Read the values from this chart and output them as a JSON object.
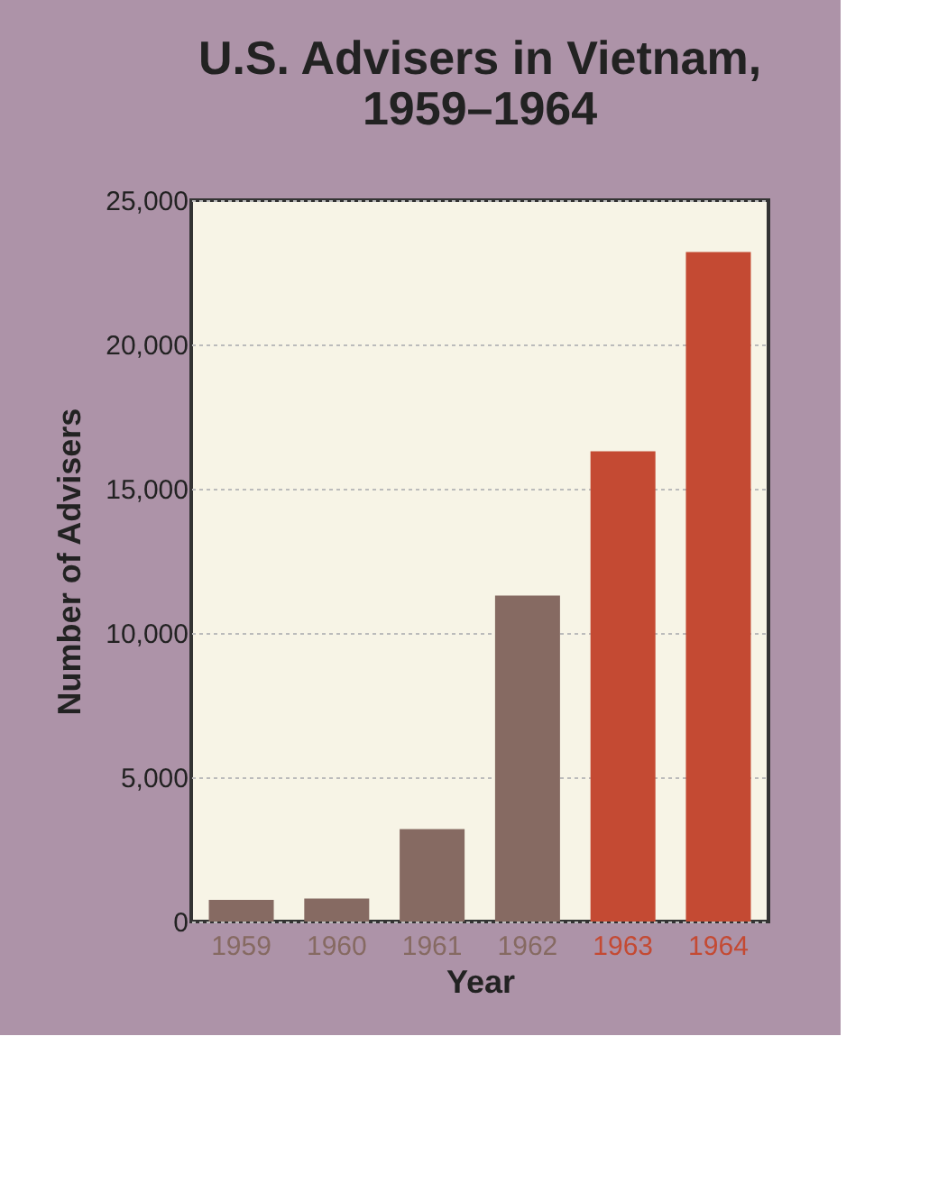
{
  "chart_data": {
    "type": "bar",
    "title": "U.S. Advisers in Vietnam,\n1959–1964",
    "xlabel": "Year",
    "ylabel": "Number of Advisers",
    "categories": [
      "1959",
      "1960",
      "1961",
      "1962",
      "1963",
      "1964"
    ],
    "values": [
      750,
      800,
      3200,
      11300,
      16300,
      23200
    ],
    "colors": [
      "#866a62",
      "#866a62",
      "#866a62",
      "#866a62",
      "#c44a33",
      "#c44a33"
    ],
    "ylim": [
      0,
      25000
    ],
    "yticks": [
      0,
      {
        "value": 5000,
        "label": "5,000"
      },
      {
        "value": 10000,
        "label": "10,000"
      },
      {
        "value": 15000,
        "label": "15,000"
      },
      {
        "value": 20000,
        "label": "20,000"
      },
      {
        "value": 25000,
        "label": "25,000"
      }
    ],
    "grid": "y"
  }
}
